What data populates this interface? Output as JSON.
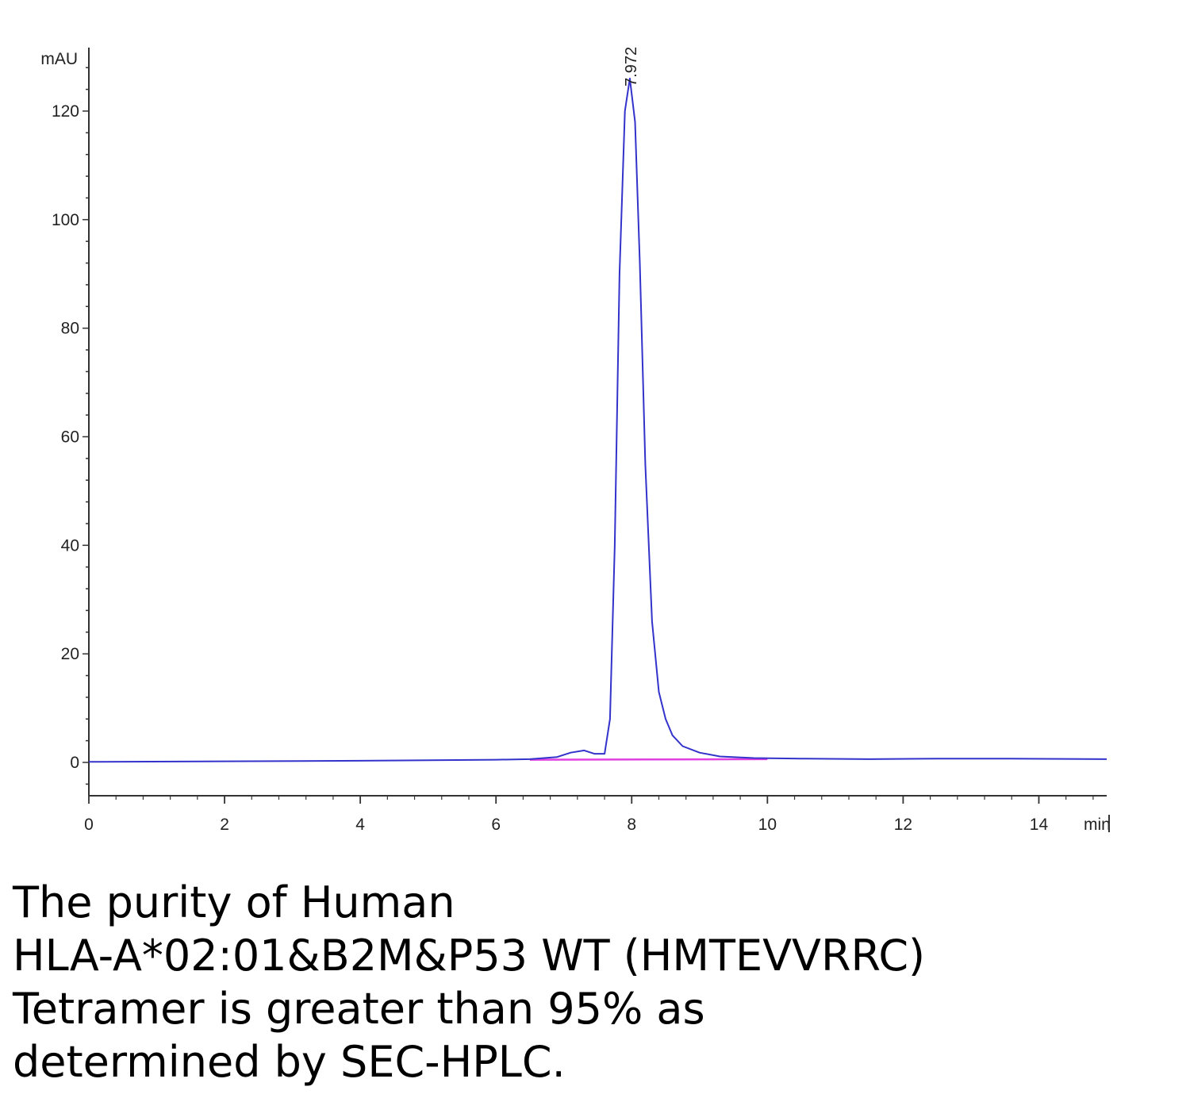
{
  "chart_data": {
    "type": "line",
    "xlabel": "min",
    "ylabel": "mAU",
    "xlim": [
      0,
      15
    ],
    "ylim": [
      -6,
      130
    ],
    "x_ticks": [
      0,
      2,
      4,
      6,
      8,
      10,
      12,
      14
    ],
    "y_ticks": [
      0,
      20,
      40,
      60,
      80,
      100,
      120
    ],
    "grid": false,
    "peak": {
      "label": "7.972",
      "x": 7.972,
      "y": 126
    },
    "series": [
      {
        "color": "#3333cc",
        "x": [
          0,
          2,
          4,
          6,
          6.5,
          6.9,
          7.1,
          7.3,
          7.45,
          7.6,
          7.68,
          7.75,
          7.82,
          7.9,
          7.972,
          8.05,
          8.12,
          8.2,
          8.3,
          8.4,
          8.5,
          8.6,
          8.75,
          9.0,
          9.3,
          9.8,
          10.5,
          11.5,
          12.5,
          13.5,
          15
        ],
        "y": [
          0.1,
          0.2,
          0.3,
          0.5,
          0.6,
          1.0,
          1.8,
          2.2,
          1.6,
          1.6,
          8,
          40,
          90,
          120,
          126,
          118,
          92,
          55,
          26,
          13,
          8,
          5,
          3,
          1.8,
          1.1,
          0.8,
          0.7,
          0.6,
          0.7,
          0.7,
          0.6
        ]
      },
      {
        "color": "#e040e0",
        "x": [
          6.5,
          10
        ],
        "y": [
          0.5,
          0.6
        ]
      }
    ]
  },
  "caption": {
    "lines": [
      "The purity of Human",
      "HLA-A*02:01&B2M&P53 WT (HMTEVVRRC)",
      "Tetramer is greater than 95% as",
      "determined by SEC-HPLC."
    ]
  }
}
